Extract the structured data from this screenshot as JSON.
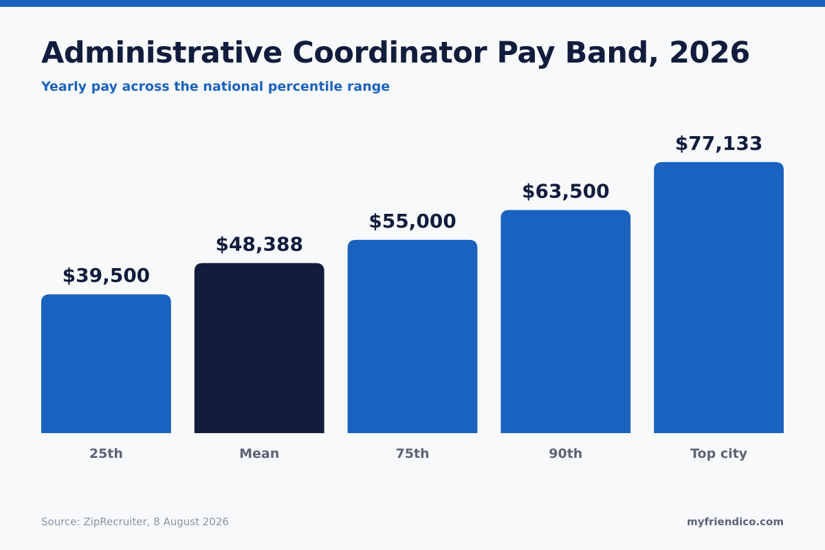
{
  "header": {
    "title": "Administrative Coordinator Pay Band, 2026",
    "subtitle": "Yearly pay across the national percentile range"
  },
  "footer": {
    "source": "Source: ZipRecruiter, 8 August 2026",
    "brand": "myfriendico.com"
  },
  "colors": {
    "accent": "#1a62bf",
    "highlight": "#121d3d",
    "value_label": "#121d3d",
    "category_label": "#5b6475"
  },
  "chart_data": {
    "type": "bar",
    "title": "Administrative Coordinator Pay Band, 2026",
    "subtitle": "Yearly pay across the national percentile range",
    "xlabel": "",
    "ylabel": "",
    "categories": [
      "25th",
      "Mean",
      "75th",
      "90th",
      "Top city"
    ],
    "values": [
      39500,
      48388,
      55000,
      63500,
      77133
    ],
    "value_labels": [
      "$39,500",
      "$48,388",
      "$55,000",
      "$63,500",
      "$77,133"
    ],
    "highlight_index": 1,
    "ylim": [
      0,
      90000
    ],
    "grid": false,
    "legend": "none"
  }
}
